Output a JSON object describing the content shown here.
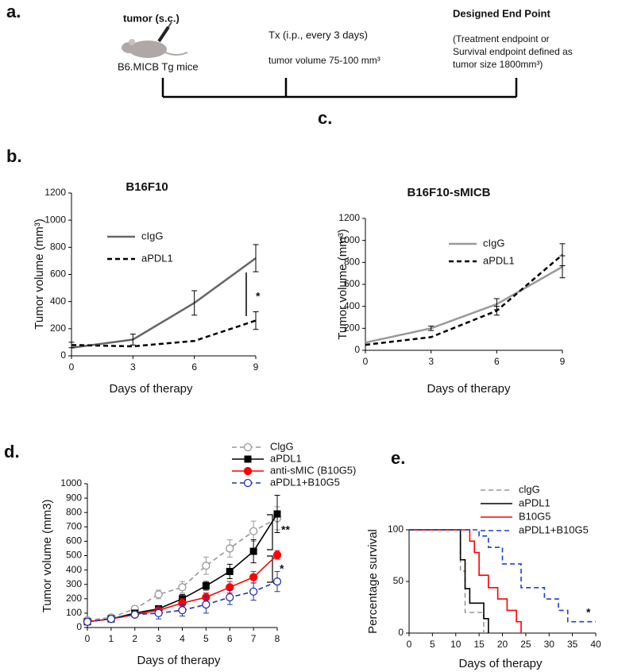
{
  "panel_a": {
    "panel_label": "a.",
    "injection": "tumor (s.c.)",
    "mice": "B6.MICB Tg mice",
    "treatment": "Tx (i.p., every 3 days)",
    "start_volume": "tumor volume 75-100 mm³",
    "endpoint_title": "Designed End Point",
    "endpoint_lines": [
      "(Treatment endpoint or",
      "Survival endpoint defined as",
      "tumor size 1800mm³)"
    ]
  },
  "chart_data": [
    {
      "type": "line",
      "panel_label": "b.",
      "title": "B16F10",
      "x_label": "Days of therapy",
      "y_label": "Tumor volume (mm³)",
      "x": [
        0,
        3,
        6,
        9
      ],
      "xlim": [
        0,
        9
      ],
      "xticks": [
        0,
        3,
        6,
        9
      ],
      "ylim": [
        0,
        1200
      ],
      "yticks": [
        0,
        200,
        400,
        600,
        800,
        1000,
        1200
      ],
      "error_color": "#000000",
      "annotations": [
        "*"
      ],
      "series": [
        {
          "name": "cIgG",
          "color": "#666666",
          "dash": false,
          "values": [
            60,
            120,
            390,
            720
          ],
          "errors": [
            null,
            40,
            90,
            100
          ]
        },
        {
          "name": "aPDL1",
          "color": "#000000",
          "dash": true,
          "values": [
            80,
            70,
            110,
            260
          ],
          "errors": [
            20,
            null,
            null,
            65
          ]
        }
      ]
    },
    {
      "type": "line",
      "panel_label": "c.",
      "title": "B16F10-sMICB",
      "x_label": "Days of therapy",
      "y_label": "Tumor volume (mm³)",
      "x": [
        0,
        3,
        6,
        9
      ],
      "xlim": [
        0,
        9
      ],
      "xticks": [
        0,
        3,
        6,
        9
      ],
      "ylim": [
        0,
        1200
      ],
      "yticks": [
        0,
        200,
        400,
        600,
        800,
        1000,
        1200
      ],
      "error_color": "#000000",
      "series": [
        {
          "name": "cIgG",
          "color": "#999999",
          "dash": false,
          "values": [
            70,
            200,
            420,
            760
          ],
          "errors": [
            null,
            20,
            50,
            100
          ]
        },
        {
          "name": "aPDL1",
          "color": "#000000",
          "dash": true,
          "values": [
            50,
            120,
            360,
            870
          ],
          "errors": [
            null,
            null,
            40,
            100
          ]
        }
      ]
    },
    {
      "type": "line",
      "panel_label": "d.",
      "x_label": "Days of therapy",
      "y_label": "Tumor volume (mm3)",
      "x": [
        0,
        1,
        2,
        3,
        4,
        5,
        6,
        7,
        8
      ],
      "xlim": [
        0,
        8
      ],
      "xticks": [
        0,
        1,
        2,
        3,
        4,
        5,
        6,
        7,
        8
      ],
      "ylim": [
        0,
        1000
      ],
      "yticks": [
        0,
        100,
        200,
        300,
        400,
        500,
        600,
        700,
        800,
        900,
        1000
      ],
      "annotations": [
        "**",
        "*"
      ],
      "series": [
        {
          "name": "ClgG",
          "color": "#999999",
          "dash": true,
          "marker": "circle-open",
          "values": [
            50,
            70,
            130,
            230,
            280,
            430,
            550,
            670,
            760
          ],
          "errors": [
            20,
            20,
            20,
            30,
            40,
            60,
            60,
            70,
            80
          ]
        },
        {
          "name": "aPDL1",
          "color": "#000000",
          "dash": false,
          "marker": "square",
          "values": [
            40,
            60,
            100,
            130,
            200,
            290,
            390,
            530,
            790
          ],
          "errors": [
            10,
            10,
            10,
            20,
            30,
            30,
            50,
            80,
            130
          ]
        },
        {
          "name": "anti-sMIC (B10G5)",
          "color": "#ff0000",
          "dash": false,
          "marker": "circle",
          "values": [
            40,
            60,
            90,
            120,
            170,
            210,
            280,
            350,
            505
          ],
          "errors": [
            10,
            10,
            10,
            20,
            30,
            30,
            40,
            40,
            30
          ]
        },
        {
          "name": "aPDL1+B10G5",
          "color": "#2233aa",
          "dash": true,
          "marker": "circle-open",
          "values": [
            40,
            60,
            90,
            100,
            120,
            160,
            210,
            250,
            320
          ],
          "errors": [
            10,
            10,
            10,
            40,
            40,
            60,
            50,
            60,
            70
          ]
        }
      ]
    },
    {
      "type": "step",
      "panel_label": "e.",
      "x_label": "Days of therapy",
      "y_label": "Percentage survival",
      "xlim": [
        0,
        40
      ],
      "xticks": [
        0,
        5,
        10,
        15,
        20,
        25,
        30,
        35,
        40
      ],
      "ylim": [
        0,
        100
      ],
      "yticks": [
        0,
        50,
        100
      ],
      "annotations": [
        "*"
      ],
      "series": [
        {
          "name": "clgG",
          "color": "#999999",
          "dash": true,
          "x": [
            0,
            11,
            12,
            16
          ],
          "values": [
            100,
            60,
            20,
            0
          ]
        },
        {
          "name": "aPDL1",
          "color": "#000000",
          "dash": false,
          "x": [
            0,
            11,
            12,
            13,
            16,
            17
          ],
          "values": [
            100,
            71,
            43,
            29,
            14,
            0
          ]
        },
        {
          "name": "B10G5",
          "color": "#ff0000",
          "dash": false,
          "x": [
            0,
            13,
            14,
            15,
            17,
            19,
            21,
            23,
            24
          ],
          "values": [
            100,
            89,
            78,
            56,
            44,
            33,
            22,
            11,
            0
          ]
        },
        {
          "name": "aPDL1+B10G5",
          "color": "#1a3fd9",
          "dash": true,
          "x": [
            0,
            15,
            17,
            20,
            24,
            29,
            32,
            34,
            40
          ],
          "values": [
            100,
            94,
            83,
            67,
            44,
            33,
            22,
            11,
            11
          ]
        }
      ]
    }
  ]
}
